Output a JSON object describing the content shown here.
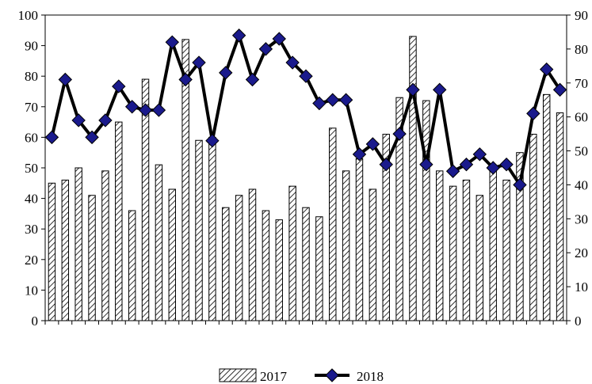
{
  "chart_data": {
    "type": "bar",
    "categories_count": 39,
    "series": [
      {
        "name": "2017",
        "kind": "bar",
        "axis": "left",
        "values": [
          45,
          46,
          50,
          41,
          49,
          65,
          36,
          79,
          51,
          43,
          92,
          59,
          60,
          37,
          41,
          43,
          36,
          33,
          44,
          37,
          34,
          63,
          49,
          53,
          43,
          61,
          73,
          93,
          72,
          49,
          44,
          46,
          41,
          50,
          46,
          55,
          61,
          74,
          68
        ]
      },
      {
        "name": "2018",
        "kind": "line",
        "axis": "right",
        "marker": "diamond",
        "values": [
          54,
          71,
          59,
          54,
          59,
          69,
          63,
          62,
          62,
          82,
          71,
          76,
          53,
          73,
          84,
          71,
          80,
          83,
          76,
          72,
          64,
          65,
          65,
          49,
          52,
          46,
          55,
          68,
          46,
          68,
          44,
          46,
          49,
          45,
          46,
          40,
          61,
          74,
          68
        ]
      }
    ],
    "y_left": {
      "min": 0,
      "max": 100,
      "step": 10,
      "ticks": [
        "0",
        "10",
        "20",
        "30",
        "40",
        "50",
        "60",
        "70",
        "80",
        "90",
        "100"
      ]
    },
    "y_right": {
      "min": 0,
      "max": 90,
      "step": 10,
      "ticks": [
        "0",
        "10",
        "20",
        "30",
        "40",
        "50",
        "60",
        "70",
        "80",
        "90"
      ]
    },
    "grid": false,
    "legend_position": "bottom-center",
    "colors": {
      "bar_fill": "#ffffff",
      "bar_hatch": "#000000",
      "line": "#000000",
      "marker": "#1a1a8c"
    }
  }
}
